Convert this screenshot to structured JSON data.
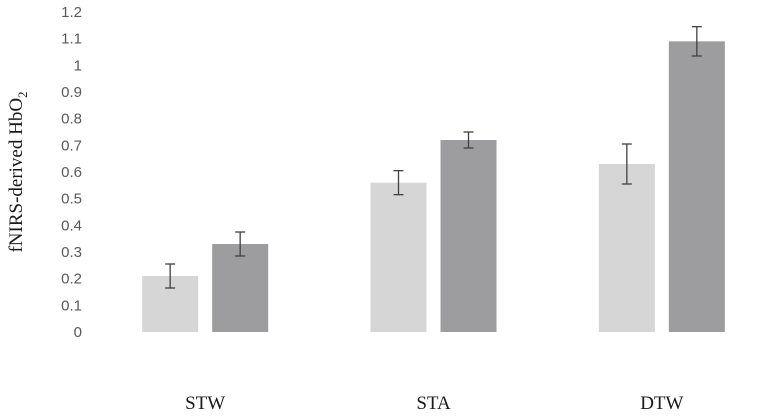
{
  "chart_data": {
    "type": "bar",
    "categories": [
      "STW",
      "STA",
      "DTW"
    ],
    "series": [
      {
        "values": [
          0.21,
          0.56,
          0.63
        ],
        "errors": [
          0.045,
          0.045,
          0.075
        ],
        "color": "#d6d6d6"
      },
      {
        "values": [
          0.33,
          0.72,
          1.09
        ],
        "errors": [
          0.045,
          0.03,
          0.055
        ],
        "color": "#9d9d9f"
      }
    ],
    "ylabel": {
      "main": "fNIRS-derived HbO",
      "sub": "2"
    },
    "ylim": [
      0,
      1.2
    ],
    "yticks": [
      "0",
      "0.1",
      "0.2",
      "0.3",
      "0.4",
      "0.5",
      "0.6",
      "0.7",
      "0.8",
      "0.9",
      "1",
      "1.1",
      "1.2"
    ],
    "grid": false,
    "legend": "none",
    "error_bar_color": "#404040"
  }
}
